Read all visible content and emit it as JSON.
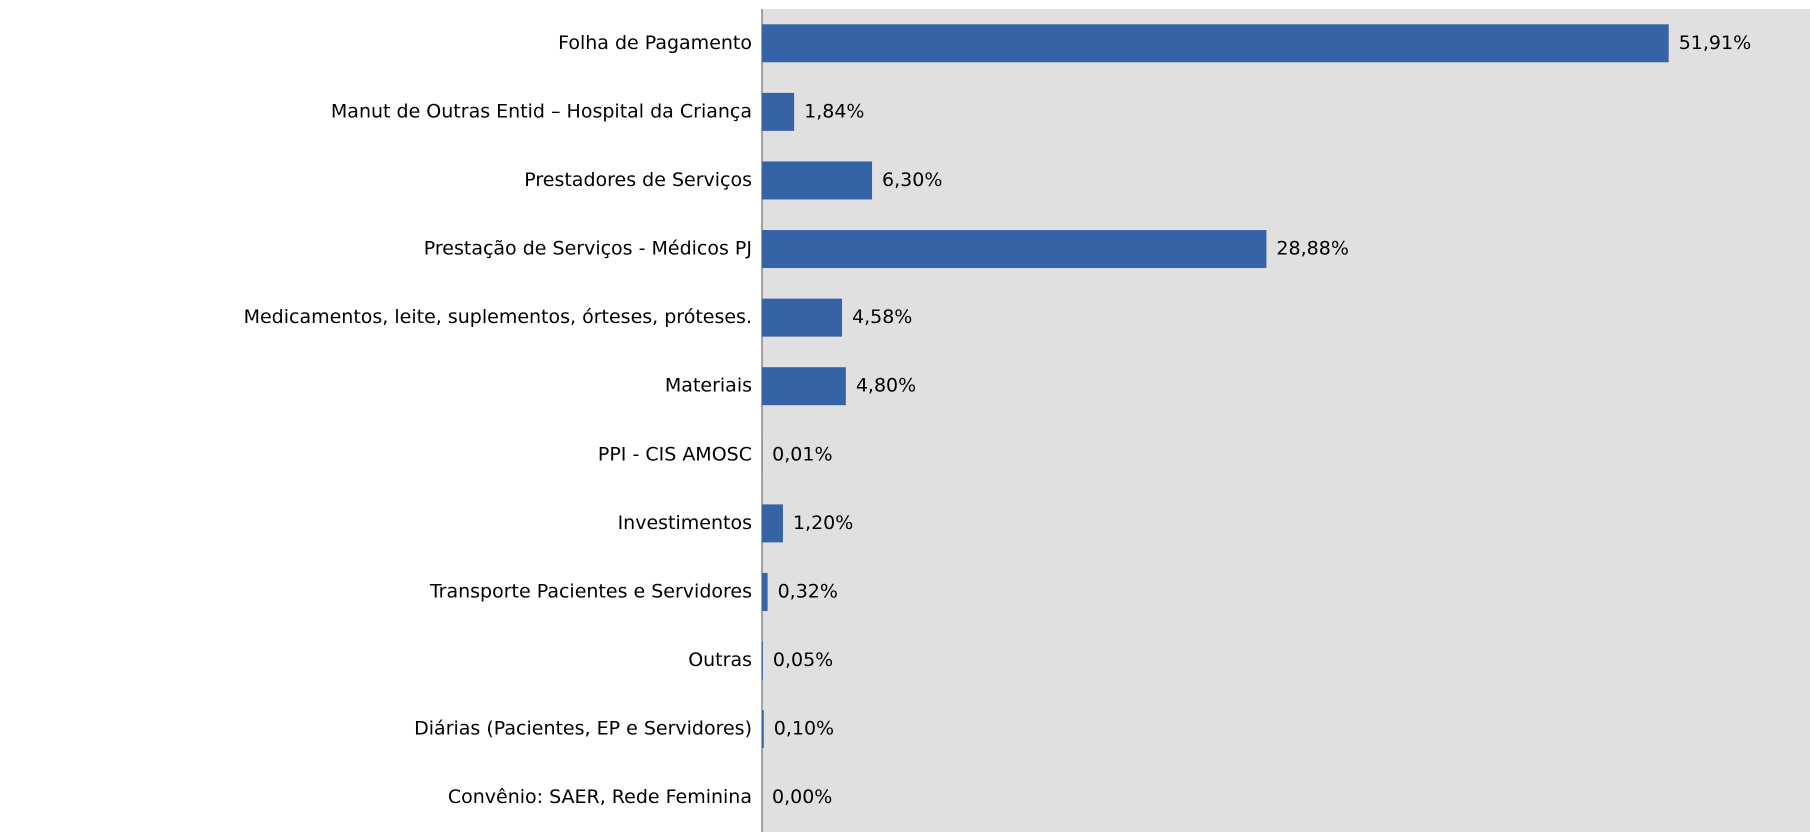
{
  "chart_data": {
    "type": "bar",
    "orientation": "horizontal",
    "color": "#3563a6",
    "categories": [
      "Folha de Pagamento",
      "Manut de Outras Entid – Hospital da Criança",
      "Prestadores de Serviços",
      "Prestação de Serviços - Médicos PJ",
      "Medicamentos, leite, suplementos, órteses, próteses.",
      "Materiais",
      "PPI - CIS AMOSC",
      "Investimentos",
      "Transporte Pacientes e Servidores",
      "Outras",
      "Diárias (Pacientes, EP e Servidores)",
      "Convênio: SAER, Rede Feminina"
    ],
    "values": [
      51.91,
      1.84,
      6.3,
      28.88,
      4.58,
      4.8,
      0.01,
      1.2,
      0.32,
      0.05,
      0.1,
      0.0
    ],
    "value_labels": [
      "51,91%",
      "1,84%",
      "6,30%",
      "28,88%",
      "4,58%",
      "4,80%",
      "0,01%",
      "1,20%",
      "0,32%",
      "0,05%",
      "0,10%",
      "0,00%"
    ],
    "xlim": [
      0,
      60
    ]
  }
}
